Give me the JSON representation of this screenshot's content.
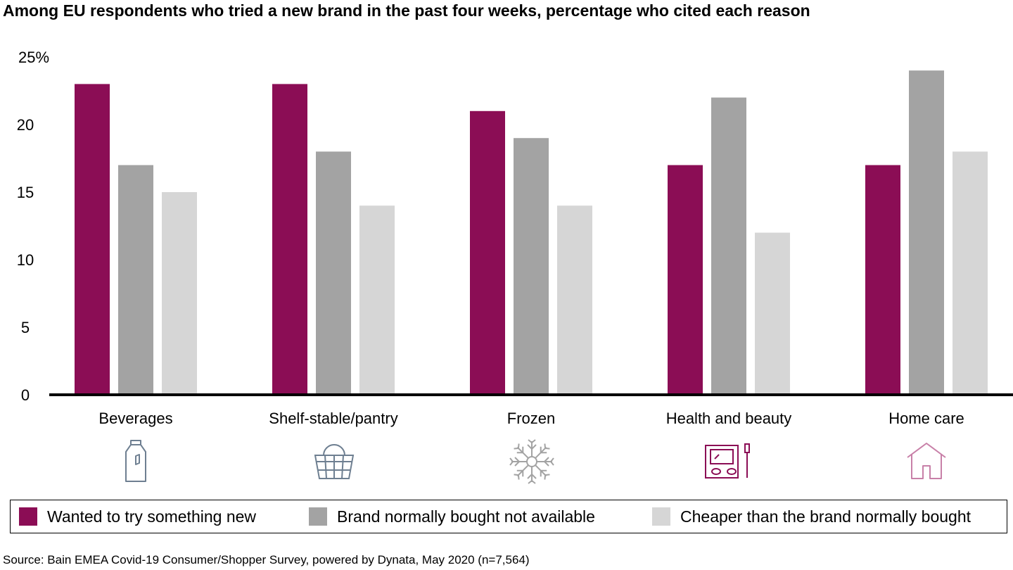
{
  "chart_data": {
    "type": "bar",
    "title": "Among EU respondents who tried a new brand in the past four weeks, percentage who cited each reason",
    "categories": [
      "Beverages",
      "Shelf-stable/pantry",
      "Frozen",
      "Health and beauty",
      "Home care"
    ],
    "category_icons": [
      "milk-bottle-icon",
      "shopping-basket-icon",
      "snowflake-icon",
      "makeup-palette-icon",
      "house-icon"
    ],
    "series": [
      {
        "name": "Wanted to try something new",
        "color": "#8b0d55",
        "values": [
          23,
          23,
          21,
          17,
          17
        ]
      },
      {
        "name": "Brand normally bought not available",
        "color": "#a3a3a3",
        "values": [
          17,
          18,
          19,
          22,
          24
        ]
      },
      {
        "name": "Cheaper than the brand normally bought",
        "color": "#d6d6d6",
        "values": [
          15,
          14,
          14,
          12,
          18
        ]
      }
    ],
    "yticks": [
      "0",
      "5",
      "10",
      "15",
      "20",
      "25%"
    ],
    "ylim": [
      0,
      25
    ],
    "grid": false,
    "legend_position": "bottom",
    "icon_colors": {
      "beverages": "#6e7f91",
      "pantry": "#6e7f91",
      "frozen": "#a3a3a3",
      "beauty": "#8b0d55",
      "home": "#c880a8"
    }
  },
  "source": "Source: Bain EMEA Covid-19 Consumer/Shopper Survey, powered by Dynata, May 2020 (n=7,564)"
}
